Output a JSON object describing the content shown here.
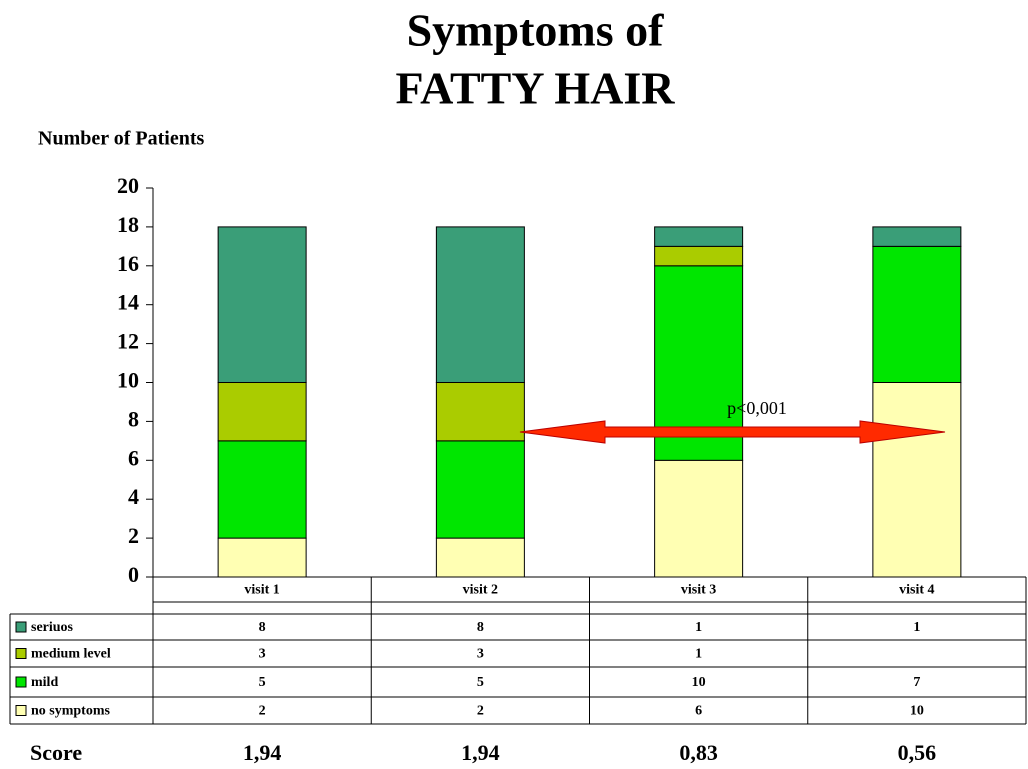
{
  "chart_data": {
    "type": "stacked_bar",
    "title": [
      "Symptoms of",
      "FATTY HAIR"
    ],
    "y_label": "Number of Patients",
    "categories": [
      "visit 1",
      "visit 2",
      "visit 3",
      "visit 4"
    ],
    "series": [
      {
        "name": "no symptoms",
        "color": "#ffffb3",
        "values": [
          2,
          2,
          6,
          10
        ]
      },
      {
        "name": "mild",
        "color": "#00e600",
        "values": [
          5,
          5,
          10,
          7
        ]
      },
      {
        "name": "medium level",
        "color": "#aacc00",
        "values": [
          3,
          3,
          1,
          null
        ]
      },
      {
        "name": "seriuos",
        "color": "#3a9e78",
        "values": [
          8,
          8,
          1,
          1
        ]
      }
    ],
    "ylim": [
      0,
      20
    ],
    "yticks": [
      0,
      2,
      4,
      6,
      8,
      10,
      12,
      14,
      16,
      18,
      20
    ],
    "annotation": "p<0,001",
    "score": {
      "label": "Score",
      "values": [
        1.94,
        1.94,
        0.83,
        0.56
      ],
      "value_labels": [
        "1,94",
        "1,94",
        "0,83",
        "0,56"
      ]
    }
  }
}
